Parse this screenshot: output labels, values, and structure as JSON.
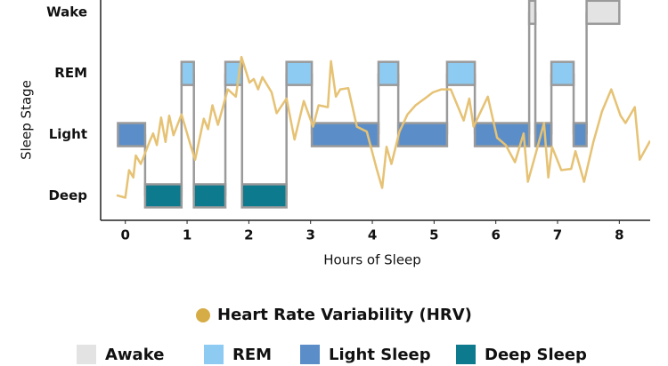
{
  "chart_data": {
    "type": "hypnogram",
    "y_axis_label": "Sleep Stage",
    "x_axis_label": "Hours of Sleep",
    "xlim": [
      -0.4,
      8.5
    ],
    "xticks": [
      0,
      1,
      2,
      3,
      4,
      5,
      6,
      7,
      8
    ],
    "ylim": [
      -0.4,
      3.2
    ],
    "stages": [
      {
        "label": "Wake",
        "name": "Awake",
        "color": "#e3e3e3"
      },
      {
        "label": "REM",
        "name": "REM",
        "color": "#8ecbf3"
      },
      {
        "label": "Light",
        "name": "Light Sleep",
        "color": "#5b8ec9"
      },
      {
        "label": "Deep",
        "name": "Deep Sleep",
        "color": "#0d7a8e"
      }
    ],
    "segments": [
      {
        "start": -0.12,
        "end": 0.32,
        "stage": "Light"
      },
      {
        "start": 0.32,
        "end": 0.91,
        "stage": "Deep"
      },
      {
        "start": 0.91,
        "end": 1.11,
        "stage": "REM"
      },
      {
        "start": 1.11,
        "end": 1.62,
        "stage": "Deep"
      },
      {
        "start": 1.62,
        "end": 1.89,
        "stage": "REM"
      },
      {
        "start": 1.89,
        "end": 2.61,
        "stage": "Deep"
      },
      {
        "start": 2.61,
        "end": 3.02,
        "stage": "REM"
      },
      {
        "start": 3.02,
        "end": 4.1,
        "stage": "Light"
      },
      {
        "start": 4.1,
        "end": 4.42,
        "stage": "REM"
      },
      {
        "start": 4.42,
        "end": 5.21,
        "stage": "Light"
      },
      {
        "start": 5.21,
        "end": 5.66,
        "stage": "REM"
      },
      {
        "start": 5.66,
        "end": 6.54,
        "stage": "Light"
      },
      {
        "start": 6.54,
        "end": 6.64,
        "stage": "Wake"
      },
      {
        "start": 6.64,
        "end": 6.9,
        "stage": "Light"
      },
      {
        "start": 6.9,
        "end": 7.26,
        "stage": "REM"
      },
      {
        "start": 7.26,
        "end": 7.47,
        "stage": "Light"
      },
      {
        "start": 7.47,
        "end": 8.0,
        "stage": "Wake"
      }
    ],
    "hrv": {
      "name": "Heart Rate Variability (HRV)",
      "color": "#e6c274",
      "marker_color": "#d6ac47",
      "x": [
        -0.14,
        0,
        0.06,
        0.13,
        0.17,
        0.25,
        0.39,
        0.45,
        0.51,
        0.58,
        0.65,
        0.71,
        0.78,
        0.91,
        1.05,
        1.13,
        1.27,
        1.34,
        1.41,
        1.5,
        1.66,
        1.79,
        1.88,
        2.01,
        2.08,
        2.15,
        2.22,
        2.37,
        2.45,
        2.61,
        2.74,
        2.89,
        3.04,
        3.13,
        3.28,
        3.33,
        3.41,
        3.48,
        3.61,
        3.75,
        3.91,
        4.07,
        4.16,
        4.23,
        4.31,
        4.44,
        4.57,
        4.7,
        4.85,
        4.98,
        5.12,
        5.27,
        5.48,
        5.57,
        5.64,
        5.87,
        6.02,
        6.16,
        6.31,
        6.45,
        6.52,
        6.65,
        6.78,
        6.85,
        6.91,
        7.06,
        7.22,
        7.29,
        7.43,
        7.58,
        7.72,
        7.87,
        8.02,
        8.1,
        8.25,
        8.33,
        8.5
      ],
      "y": [
        0.01,
        -0.03,
        0.42,
        0.3,
        0.66,
        0.52,
        0.88,
        1.02,
        0.83,
        1.28,
        0.88,
        1.31,
        0.99,
        1.33,
        0.85,
        0.59,
        1.26,
        1.09,
        1.48,
        1.16,
        1.74,
        1.62,
        2.27,
        1.85,
        1.91,
        1.74,
        1.94,
        1.69,
        1.35,
        1.59,
        0.92,
        1.55,
        1.13,
        1.48,
        1.45,
        2.2,
        1.62,
        1.74,
        1.76,
        1.13,
        1.05,
        0.44,
        0.13,
        0.8,
        0.52,
        1.05,
        1.33,
        1.48,
        1.59,
        1.69,
        1.74,
        1.74,
        1.23,
        1.59,
        1.13,
        1.62,
        0.95,
        0.83,
        0.55,
        1.02,
        0.23,
        0.7,
        1.19,
        0.3,
        0.8,
        0.42,
        0.44,
        0.73,
        0.23,
        0.88,
        1.38,
        1.74,
        1.31,
        1.19,
        1.45,
        0.59,
        0.9
      ]
    }
  }
}
